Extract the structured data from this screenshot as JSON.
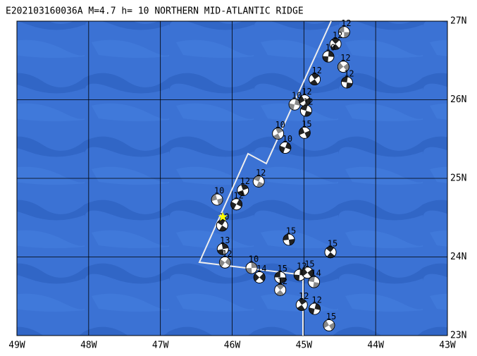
{
  "title": "E202103160036A  M=4.7  h= 10  NORTHERN MID-ATLANTIC RIDGE",
  "xlim": [
    -49,
    -43
  ],
  "ylim": [
    23,
    27
  ],
  "xticks": [
    {
      "value": -49,
      "label": "49W"
    },
    {
      "value": -48,
      "label": "48W"
    },
    {
      "value": -47,
      "label": "47W"
    },
    {
      "value": -46,
      "label": "46W"
    },
    {
      "value": -45,
      "label": "45W"
    },
    {
      "value": -44,
      "label": "44W"
    },
    {
      "value": -43,
      "label": "43W"
    }
  ],
  "yticks": [
    {
      "value": 23,
      "label": "23N"
    },
    {
      "value": 24,
      "label": "24N"
    },
    {
      "value": 25,
      "label": "25N"
    },
    {
      "value": 26,
      "label": "26N"
    },
    {
      "value": 27,
      "label": "27N"
    }
  ],
  "epicenter": {
    "lon": -46.13,
    "lat": 24.51,
    "color": "#ffff00"
  },
  "events": [
    {
      "lon": -44.44,
      "lat": 26.86,
      "depth": "12"
    },
    {
      "lon": -44.56,
      "lat": 26.71,
      "depth": "12"
    },
    {
      "lon": -44.66,
      "lat": 26.55,
      "depth": "10"
    },
    {
      "lon": -44.45,
      "lat": 26.42,
      "depth": "12"
    },
    {
      "lon": -44.4,
      "lat": 26.22,
      "depth": "12"
    },
    {
      "lon": -44.85,
      "lat": 26.26,
      "depth": "12"
    },
    {
      "lon": -45.13,
      "lat": 25.94,
      "depth": "10"
    },
    {
      "lon": -44.99,
      "lat": 25.99,
      "depth": "12"
    },
    {
      "lon": -44.97,
      "lat": 25.86,
      "depth": "12"
    },
    {
      "lon": -45.36,
      "lat": 25.57,
      "depth": "10"
    },
    {
      "lon": -45.26,
      "lat": 25.39,
      "depth": "10"
    },
    {
      "lon": -44.99,
      "lat": 25.58,
      "depth": "15"
    },
    {
      "lon": -45.63,
      "lat": 24.96,
      "depth": "12"
    },
    {
      "lon": -45.85,
      "lat": 24.85,
      "depth": "12"
    },
    {
      "lon": -45.94,
      "lat": 24.67,
      "depth": "12"
    },
    {
      "lon": -46.21,
      "lat": 24.73,
      "depth": "10"
    },
    {
      "lon": -46.14,
      "lat": 24.4,
      "depth": "10"
    },
    {
      "lon": -46.13,
      "lat": 24.1,
      "depth": "13"
    },
    {
      "lon": -46.1,
      "lat": 23.93,
      "depth": "12"
    },
    {
      "lon": -45.21,
      "lat": 24.22,
      "depth": "15"
    },
    {
      "lon": -44.63,
      "lat": 24.06,
      "depth": "15"
    },
    {
      "lon": -45.73,
      "lat": 23.86,
      "depth": "10"
    },
    {
      "lon": -45.62,
      "lat": 23.74,
      "depth": "14"
    },
    {
      "lon": -45.33,
      "lat": 23.74,
      "depth": "15"
    },
    {
      "lon": -45.33,
      "lat": 23.58,
      "depth": "12"
    },
    {
      "lon": -45.06,
      "lat": 23.77,
      "depth": "12"
    },
    {
      "lon": -44.95,
      "lat": 23.8,
      "depth": "15"
    },
    {
      "lon": -44.86,
      "lat": 23.68,
      "depth": "14"
    },
    {
      "lon": -45.03,
      "lat": 23.39,
      "depth": "12"
    },
    {
      "lon": -44.85,
      "lat": 23.34,
      "depth": "12"
    },
    {
      "lon": -44.65,
      "lat": 23.13,
      "depth": "15"
    }
  ]
}
